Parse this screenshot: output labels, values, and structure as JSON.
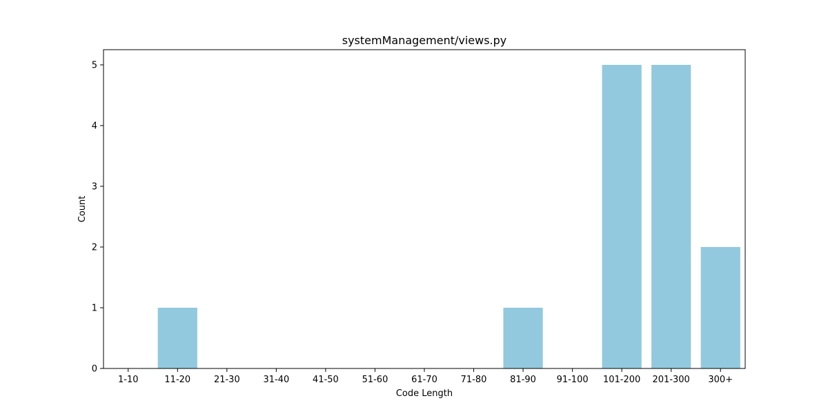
{
  "chart_data": {
    "type": "bar",
    "title": "systemManagement/views.py",
    "xlabel": "Code Length",
    "ylabel": "Count",
    "categories": [
      "1-10",
      "11-20",
      "21-30",
      "31-40",
      "41-50",
      "51-60",
      "61-70",
      "71-80",
      "81-90",
      "91-100",
      "101-200",
      "201-300",
      "300+"
    ],
    "values": [
      0,
      1,
      0,
      0,
      0,
      0,
      0,
      0,
      1,
      0,
      5,
      5,
      2
    ],
    "ylim": [
      0,
      5.25
    ],
    "yticks": [
      0,
      1,
      2,
      3,
      4,
      5
    ],
    "bar_color": "#92c9de",
    "grid": false
  }
}
